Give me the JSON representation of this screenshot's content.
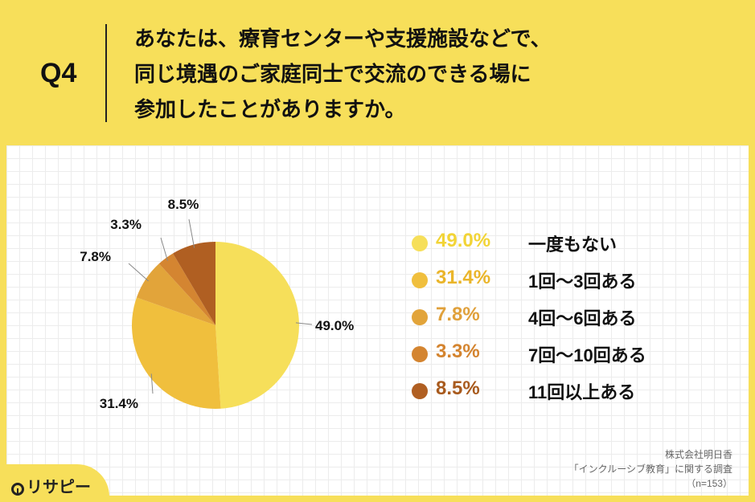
{
  "header": {
    "q_label": "Q4",
    "question_lines": [
      "あなたは、療育センターや支援施設などで、",
      "同じ境遇のご家庭同士で交流のできる場に",
      "参加したことがありますか。"
    ]
  },
  "chart_data": {
    "type": "pie",
    "start": "12 o'clock, clockwise",
    "slices": [
      {
        "label": "一度もない",
        "value": 49.0,
        "value_label": "49.0%",
        "color": "#f6df5a"
      },
      {
        "label": "1回〜3回ある",
        "value": 31.4,
        "value_label": "31.4%",
        "color": "#f0bf3d"
      },
      {
        "label": "4回〜6回ある",
        "value": 7.8,
        "value_label": "7.8%",
        "color": "#e2a43a"
      },
      {
        "label": "7回〜10回ある",
        "value": 3.3,
        "value_label": "3.3%",
        "color": "#d48531"
      },
      {
        "label": "11回以上ある",
        "value": 8.5,
        "value_label": "8.5%",
        "color": "#b05f22"
      }
    ],
    "legend_position": "right"
  },
  "legend_pct_colors": [
    "#f2d436",
    "#eab52a",
    "#e0a03a",
    "#d4842f",
    "#a85a1d"
  ],
  "footer": {
    "company": "株式会社明日香",
    "survey": "「インクルーシブ教育」に関する調査",
    "n": "（n=153）"
  },
  "logo": {
    "text": "リサピー",
    "icon": "lightbulb-icon"
  }
}
